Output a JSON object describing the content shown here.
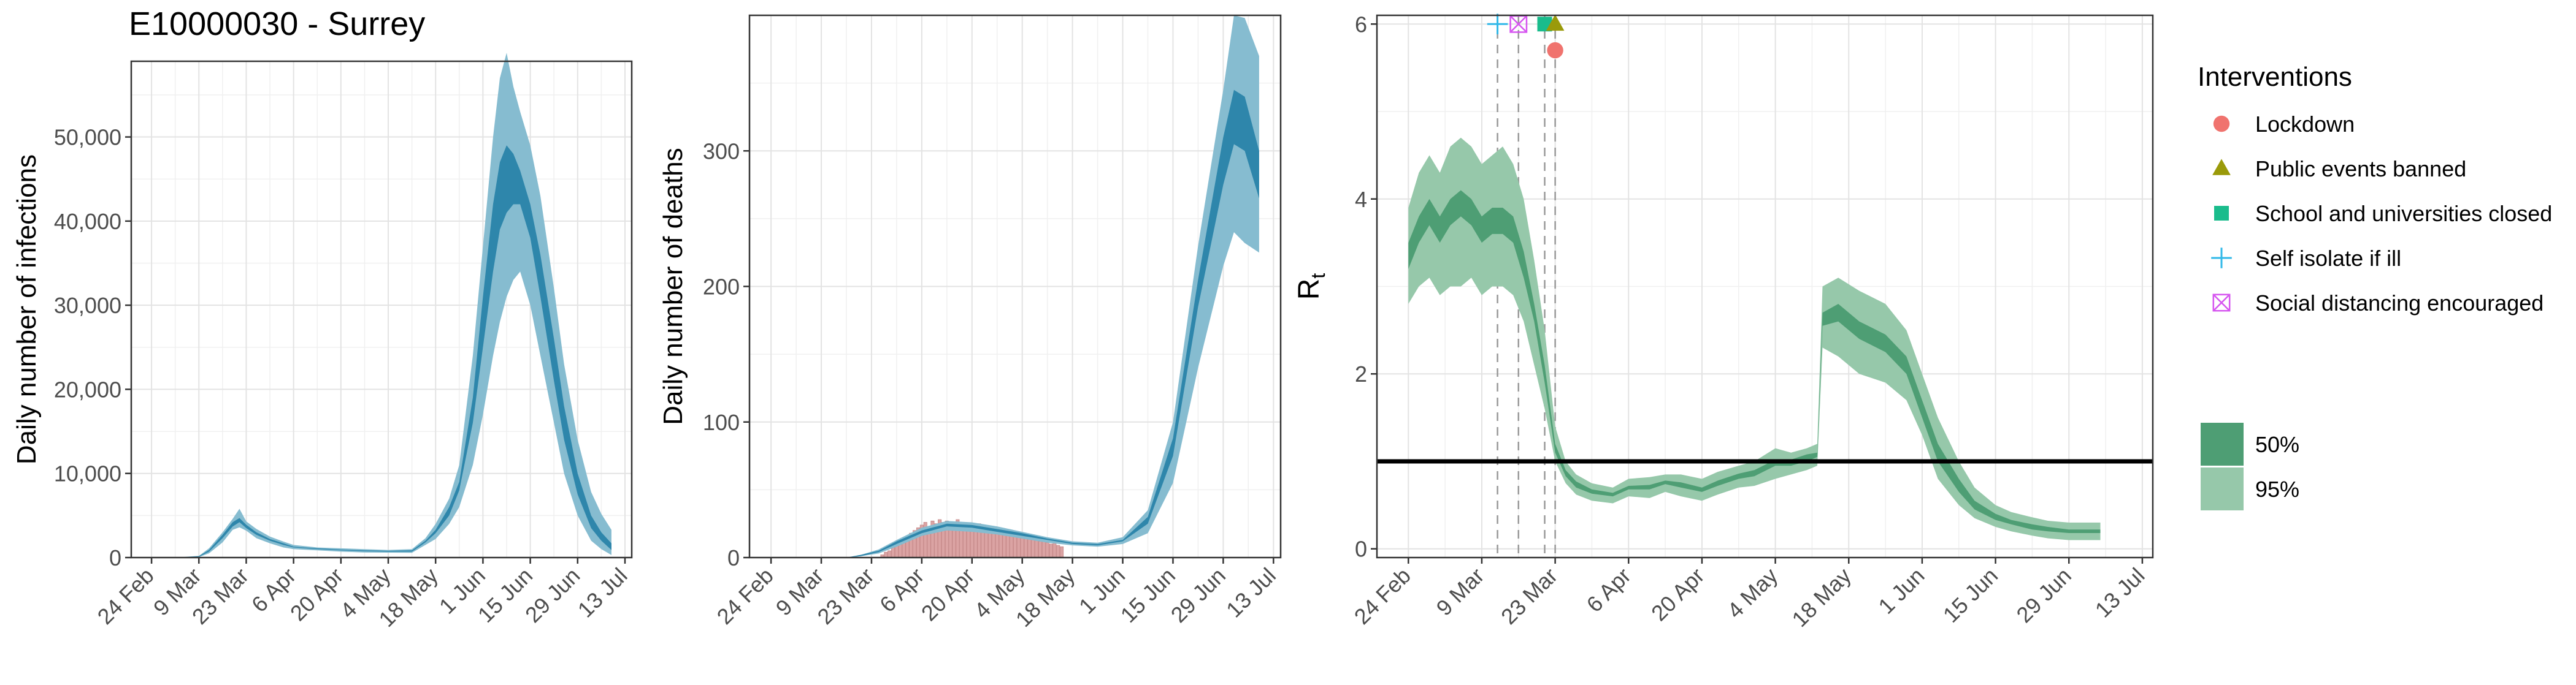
{
  "page_title": "E10000030 - Surrey",
  "date_ticks": [
    "24 Feb",
    "9 Mar",
    "23 Mar",
    "6 Apr",
    "20 Apr",
    "4 May",
    "18 May",
    "1 Jun",
    "15 Jun",
    "29 Jun",
    "13 Jul"
  ],
  "colors": {
    "infection_inner": "#2E86AB",
    "infection_outer": "#86BCD0",
    "deaths_bar": "#DBA3A3",
    "rt_inner": "#4E9E74",
    "rt_outer": "#96C8AA",
    "threshold": "#000000",
    "lockdown": "#F0736E",
    "public_events_banned": "#9A9A0A",
    "schools_closed": "#1ABC8C",
    "self_isolate": "#31B8E8",
    "social_distancing": "#D655F0"
  },
  "legend": {
    "title": "Interventions",
    "items": [
      {
        "label": "Lockdown",
        "icon": "circle"
      },
      {
        "label": "Public events banned",
        "icon": "triangle"
      },
      {
        "label": "School and universities closed",
        "icon": "square"
      },
      {
        "label": "Self isolate if ill",
        "icon": "plus"
      },
      {
        "label": "Social distancing encouraged",
        "icon": "boxed-x"
      }
    ],
    "bands": [
      {
        "label": "50%"
      },
      {
        "label": "95%"
      }
    ]
  },
  "chart_data": [
    {
      "type": "area",
      "title": "E10000030 - Surrey",
      "xlabel": "",
      "ylabel": "Daily number of infections",
      "ylim": [
        0,
        59000
      ],
      "yticks": [
        0,
        10000,
        20000,
        30000,
        40000,
        50000
      ],
      "ytick_labels": [
        "0",
        "10,000",
        "20,000",
        "30,000",
        "40,000",
        "50,000"
      ],
      "x_range": [
        "2020-02-18",
        "2020-07-15"
      ],
      "x": [
        "2020-02-24",
        "2020-03-02",
        "2020-03-09",
        "2020-03-12",
        "2020-03-16",
        "2020-03-19",
        "2020-03-21",
        "2020-03-23",
        "2020-03-26",
        "2020-03-30",
        "2020-04-03",
        "2020-04-06",
        "2020-04-13",
        "2020-04-20",
        "2020-04-27",
        "2020-05-04",
        "2020-05-11",
        "2020-05-15",
        "2020-05-18",
        "2020-05-22",
        "2020-05-25",
        "2020-05-29",
        "2020-06-01",
        "2020-06-04",
        "2020-06-06",
        "2020-06-08",
        "2020-06-10",
        "2020-06-12",
        "2020-06-15",
        "2020-06-18",
        "2020-06-22",
        "2020-06-25",
        "2020-06-29",
        "2020-07-03",
        "2020-07-06",
        "2020-07-09"
      ],
      "series": [
        {
          "name": "95%",
          "low": [
            0,
            0,
            50,
            500,
            1800,
            3300,
            3600,
            3200,
            2300,
            1700,
            1200,
            1000,
            850,
            700,
            600,
            580,
            560,
            1500,
            2200,
            4000,
            6000,
            11000,
            17000,
            24000,
            28000,
            31000,
            33000,
            34000,
            30000,
            24000,
            16000,
            10000,
            5000,
            2000,
            1000,
            300
          ],
          "high": [
            0,
            0,
            200,
            1100,
            3000,
            4600,
            5800,
            4300,
            3400,
            2500,
            1900,
            1500,
            1200,
            1100,
            1000,
            900,
            1000,
            2300,
            4000,
            7000,
            11000,
            24000,
            37000,
            50000,
            57000,
            60000,
            56000,
            53000,
            49000,
            43000,
            32000,
            23000,
            14000,
            7800,
            5200,
            3300
          ]
        },
        {
          "name": "50%",
          "low": [
            0,
            0,
            80,
            700,
            2300,
            3700,
            4200,
            3500,
            2700,
            2000,
            1500,
            1200,
            1000,
            850,
            750,
            700,
            700,
            1800,
            2900,
            5000,
            8000,
            16000,
            25000,
            34000,
            39000,
            41000,
            42000,
            42000,
            38000,
            31000,
            21000,
            14000,
            7500,
            3500,
            2000,
            900
          ],
          "high": [
            0,
            0,
            150,
            900,
            2700,
            4200,
            4700,
            3900,
            3000,
            2200,
            1700,
            1300,
            1100,
            950,
            850,
            800,
            850,
            2000,
            3300,
            6000,
            9000,
            19000,
            31000,
            42000,
            47000,
            49000,
            48000,
            46000,
            42000,
            36000,
            26000,
            18000,
            10000,
            5000,
            3000,
            1700
          ]
        }
      ]
    },
    {
      "type": "area",
      "title": "",
      "xlabel": "",
      "ylabel": "Daily number of deaths",
      "ylim": [
        0,
        400
      ],
      "yticks": [
        0,
        100,
        200,
        300
      ],
      "ytick_labels": [
        "0",
        "100",
        "200",
        "300"
      ],
      "x_range": [
        "2020-02-18",
        "2020-07-15"
      ],
      "bars_x": [
        "2020-03-26",
        "2020-03-27",
        "2020-03-28",
        "2020-03-29",
        "2020-03-30",
        "2020-03-31",
        "2020-04-01",
        "2020-04-02",
        "2020-04-03",
        "2020-04-04",
        "2020-04-05",
        "2020-04-06",
        "2020-04-07",
        "2020-04-08",
        "2020-04-09",
        "2020-04-10",
        "2020-04-11",
        "2020-04-12",
        "2020-04-13",
        "2020-04-14",
        "2020-04-15",
        "2020-04-16",
        "2020-04-17",
        "2020-04-18",
        "2020-04-19",
        "2020-04-20",
        "2020-04-21",
        "2020-04-22",
        "2020-04-23",
        "2020-04-24",
        "2020-04-25",
        "2020-04-26",
        "2020-04-27",
        "2020-04-28",
        "2020-04-29",
        "2020-04-30",
        "2020-05-01",
        "2020-05-02",
        "2020-05-03",
        "2020-05-04",
        "2020-05-05",
        "2020-05-06",
        "2020-05-07",
        "2020-05-08",
        "2020-05-09",
        "2020-05-10",
        "2020-05-11",
        "2020-05-12",
        "2020-05-13",
        "2020-05-14",
        "2020-05-15"
      ],
      "bars": [
        2,
        4,
        5,
        8,
        11,
        10,
        14,
        16,
        18,
        20,
        22,
        24,
        26,
        22,
        27,
        25,
        28,
        26,
        27,
        24,
        26,
        28,
        25,
        24,
        21,
        23,
        22,
        25,
        22,
        20,
        20,
        22,
        18,
        19,
        20,
        17,
        18,
        16,
        18,
        16,
        14,
        15,
        13,
        14,
        12,
        13,
        11,
        10,
        12,
        9,
        8
      ],
      "x": [
        "2020-03-16",
        "2020-03-20",
        "2020-03-25",
        "2020-03-30",
        "2020-04-06",
        "2020-04-13",
        "2020-04-20",
        "2020-04-27",
        "2020-05-04",
        "2020-05-11",
        "2020-05-18",
        "2020-05-25",
        "2020-06-01",
        "2020-06-08",
        "2020-06-15",
        "2020-06-22",
        "2020-06-29",
        "2020-07-02",
        "2020-07-05",
        "2020-07-09"
      ],
      "series": [
        {
          "name": "95%",
          "low": [
            0,
            1,
            3,
            8,
            16,
            20,
            19,
            17,
            14,
            11,
            9,
            8,
            10,
            18,
            55,
            140,
            215,
            240,
            232,
            225
          ],
          "high": [
            0,
            2,
            6,
            13,
            22,
            27,
            26,
            23,
            19,
            15,
            12,
            11,
            15,
            35,
            100,
            230,
            345,
            400,
            398,
            370
          ]
        },
        {
          "name": "50%",
          "low": [
            0,
            1,
            4,
            10,
            18,
            23,
            22,
            19,
            16,
            13,
            10,
            9,
            12,
            25,
            75,
            185,
            275,
            305,
            300,
            265
          ],
          "high": [
            0,
            2,
            5,
            12,
            20,
            25,
            24,
            21,
            18,
            14,
            11,
            10,
            13,
            30,
            88,
            205,
            310,
            345,
            340,
            300
          ]
        }
      ]
    },
    {
      "type": "area",
      "title": "",
      "xlabel": "",
      "ylabel": "Rt",
      "ylim": [
        -0.1,
        6.1
      ],
      "yticks": [
        0,
        2,
        4,
        6
      ],
      "ytick_labels": [
        "0",
        "2",
        "4",
        "6"
      ],
      "threshold": 1,
      "x_range": [
        "2020-02-18",
        "2020-07-15"
      ],
      "x": [
        "2020-02-24",
        "2020-02-26",
        "2020-02-28",
        "2020-03-01",
        "2020-03-03",
        "2020-03-05",
        "2020-03-07",
        "2020-03-09",
        "2020-03-11",
        "2020-03-13",
        "2020-03-15",
        "2020-03-17",
        "2020-03-19",
        "2020-03-21",
        "2020-03-23",
        "2020-03-25",
        "2020-03-27",
        "2020-03-30",
        "2020-04-03",
        "2020-04-06",
        "2020-04-10",
        "2020-04-13",
        "2020-04-16",
        "2020-04-20",
        "2020-04-23",
        "2020-04-27",
        "2020-04-30",
        "2020-05-04",
        "2020-05-07",
        "2020-05-10",
        "2020-05-12",
        "2020-05-13",
        "2020-05-16",
        "2020-05-20",
        "2020-05-25",
        "2020-05-29",
        "2020-06-01",
        "2020-06-04",
        "2020-06-08",
        "2020-06-11",
        "2020-06-15",
        "2020-06-18",
        "2020-06-22",
        "2020-06-25",
        "2020-06-29",
        "2020-07-02",
        "2020-07-05"
      ],
      "series": [
        {
          "name": "95%",
          "low": [
            2.8,
            3.0,
            3.1,
            2.9,
            3.0,
            3.0,
            3.1,
            2.9,
            3.0,
            3.0,
            2.9,
            2.6,
            2.1,
            1.6,
            1.0,
            0.75,
            0.62,
            0.55,
            0.52,
            0.6,
            0.58,
            0.65,
            0.6,
            0.55,
            0.62,
            0.7,
            0.72,
            0.8,
            0.85,
            0.9,
            0.95,
            2.3,
            2.2,
            2.0,
            1.9,
            1.7,
            1.3,
            0.8,
            0.5,
            0.35,
            0.25,
            0.2,
            0.15,
            0.12,
            0.1,
            0.1,
            0.1
          ],
          "high": [
            3.9,
            4.3,
            4.5,
            4.3,
            4.6,
            4.7,
            4.6,
            4.4,
            4.5,
            4.6,
            4.4,
            4.0,
            3.3,
            2.5,
            1.4,
            1.0,
            0.85,
            0.75,
            0.7,
            0.8,
            0.82,
            0.85,
            0.85,
            0.8,
            0.88,
            0.95,
            1.0,
            1.15,
            1.1,
            1.15,
            1.2,
            3.0,
            3.1,
            2.95,
            2.8,
            2.5,
            2.0,
            1.5,
            1.0,
            0.7,
            0.5,
            0.42,
            0.36,
            0.32,
            0.3,
            0.3,
            0.3
          ]
        },
        {
          "name": "50%",
          "low": [
            3.2,
            3.5,
            3.7,
            3.5,
            3.7,
            3.8,
            3.7,
            3.5,
            3.6,
            3.6,
            3.5,
            3.1,
            2.6,
            1.9,
            1.1,
            0.83,
            0.7,
            0.63,
            0.6,
            0.68,
            0.68,
            0.74,
            0.7,
            0.65,
            0.72,
            0.8,
            0.83,
            0.95,
            0.95,
            1.0,
            1.05,
            2.55,
            2.6,
            2.4,
            2.25,
            2.0,
            1.5,
            1.0,
            0.65,
            0.45,
            0.33,
            0.28,
            0.22,
            0.2,
            0.18,
            0.18,
            0.18
          ],
          "high": [
            3.5,
            3.8,
            4.0,
            3.8,
            4.0,
            4.1,
            4.0,
            3.8,
            3.9,
            3.9,
            3.8,
            3.4,
            2.8,
            2.1,
            1.2,
            0.9,
            0.77,
            0.68,
            0.64,
            0.72,
            0.73,
            0.78,
            0.76,
            0.7,
            0.78,
            0.86,
            0.9,
            1.02,
            1.02,
            1.08,
            1.1,
            2.7,
            2.8,
            2.6,
            2.45,
            2.2,
            1.7,
            1.2,
            0.8,
            0.55,
            0.4,
            0.33,
            0.28,
            0.25,
            0.22,
            0.22,
            0.22
          ]
        }
      ],
      "interventions": [
        {
          "name": "Self isolate if ill",
          "date": "2020-03-12",
          "marker": "plus",
          "y": 6.0
        },
        {
          "name": "Social distancing encouraged",
          "date": "2020-03-16",
          "marker": "boxed-x",
          "y": 6.0
        },
        {
          "name": "School and universities closed",
          "date": "2020-03-21",
          "marker": "square",
          "y": 6.0
        },
        {
          "name": "Public events banned",
          "date": "2020-03-23",
          "marker": "triangle",
          "y": 6.0
        },
        {
          "name": "Lockdown",
          "date": "2020-03-23",
          "marker": "circle",
          "y": 5.7
        }
      ]
    }
  ]
}
